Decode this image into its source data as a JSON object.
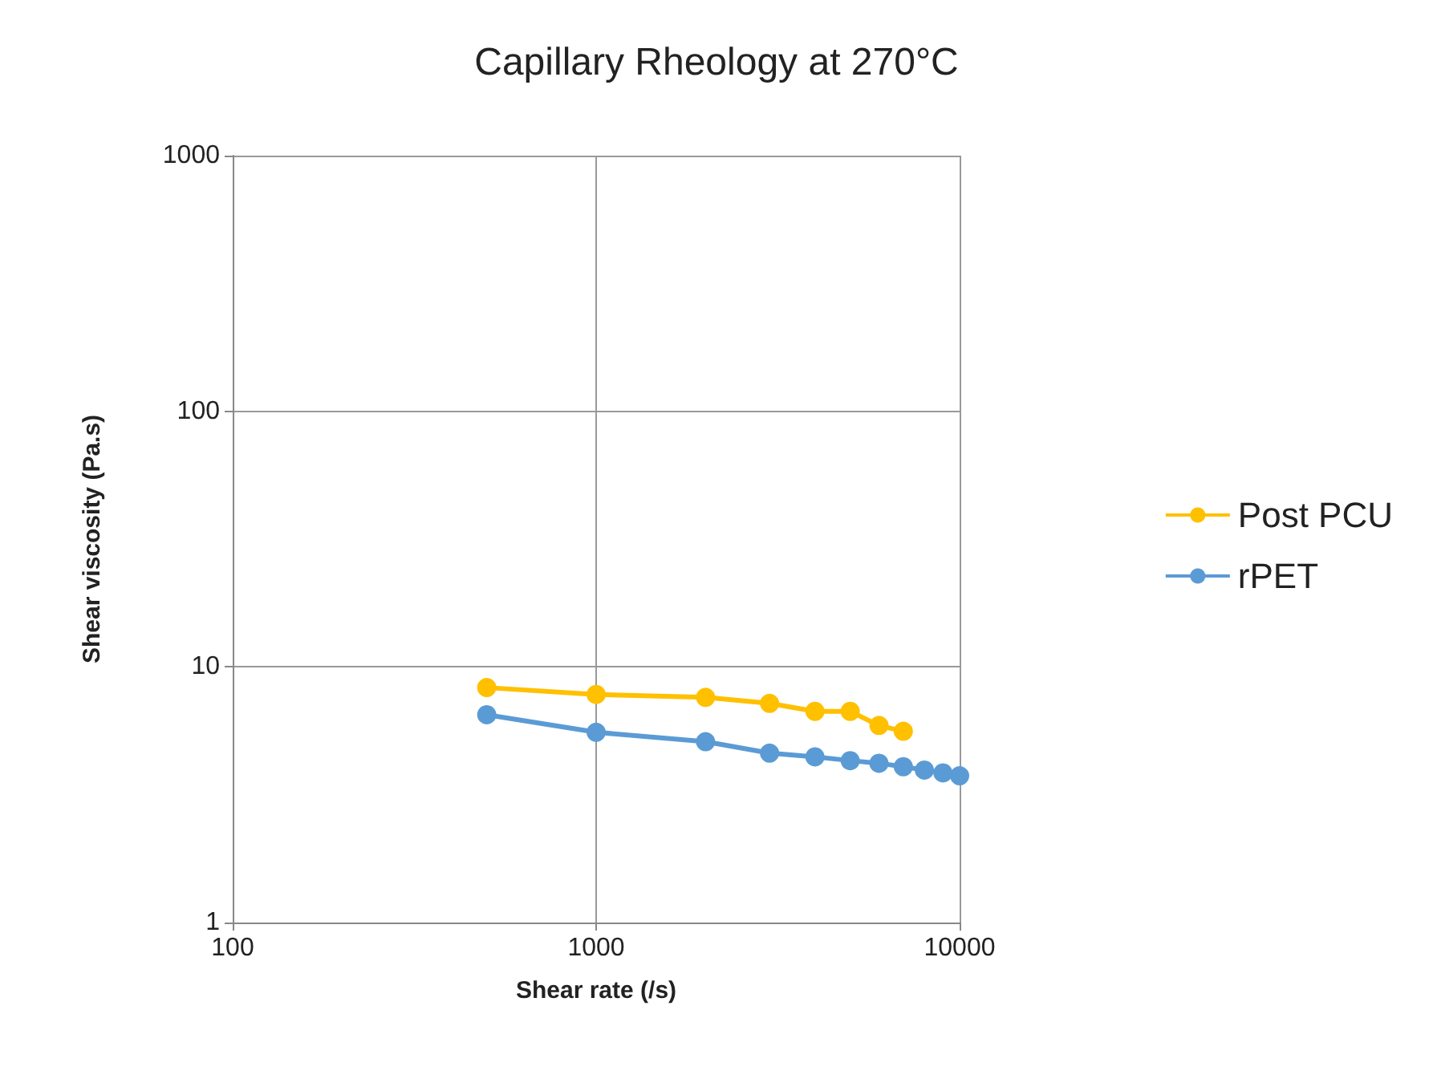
{
  "chart_data": {
    "type": "line",
    "title": "Capillary Rheology at 270°C",
    "xlabel": "Shear rate (/s)",
    "ylabel": "Shear viscosity (Pa.s)",
    "log": "xy",
    "xlim": [
      100,
      10000
    ],
    "xticks": [
      100,
      1000,
      10000
    ],
    "ylim": [
      1,
      1000
    ],
    "yticks": [
      1,
      10,
      100,
      1000
    ],
    "grid": true,
    "legend": "right",
    "marker": "circle",
    "series": [
      {
        "name": "Post PCU",
        "color": "#ffc000",
        "x": [
          500,
          1000,
          2000,
          3000,
          4000,
          5000,
          6000,
          7000
        ],
        "values": [
          8.3,
          7.8,
          7.6,
          7.2,
          6.7,
          6.7,
          5.9,
          5.6
        ]
      },
      {
        "name": "rPET",
        "color": "#5b9bd5",
        "x": [
          500,
          1000,
          2000,
          3000,
          4000,
          5000,
          6000,
          7000,
          8000,
          9000,
          10000
        ],
        "values": [
          6.5,
          5.55,
          5.1,
          4.6,
          4.45,
          4.3,
          4.2,
          4.07,
          3.95,
          3.85,
          3.75
        ]
      }
    ]
  }
}
